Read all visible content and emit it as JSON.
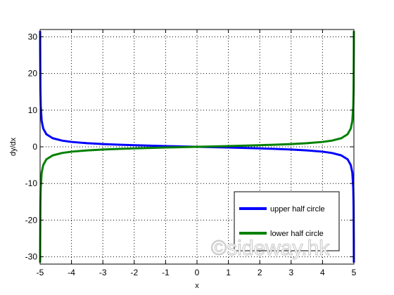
{
  "watermark": "©sideway.hk",
  "chart_data": {
    "type": "line",
    "title": "",
    "xlabel": "x",
    "ylabel": "dy/dx",
    "xlim": [
      -5,
      5
    ],
    "ylim": [
      -32,
      32
    ],
    "xticks": [
      "-5",
      "-4",
      "-3",
      "-2",
      "-1",
      "0",
      "1",
      "2",
      "3",
      "4",
      "5"
    ],
    "yticks": [
      "-30",
      "-20",
      "-10",
      "0",
      "10",
      "20",
      "30"
    ],
    "grid": true,
    "legend_position": "bottom-right",
    "series": [
      {
        "name": "upper half circle",
        "color": "#0000ff",
        "x": [
          -4.999,
          -4.997,
          -4.99,
          -4.98,
          -4.95,
          -4.9,
          -4.8,
          -4.6,
          -4.3,
          -4,
          -3.5,
          -3,
          -2.5,
          -2,
          -1.5,
          -1,
          -0.5,
          0,
          0.5,
          1,
          1.5,
          2,
          2.5,
          3,
          3.5,
          4,
          4.3,
          4.6,
          4.8,
          4.9,
          4.95,
          4.98,
          4.99,
          4.997,
          4.999
        ],
        "y": [
          31.6,
          25.8,
          15.8,
          11.2,
          7.05,
          4.97,
          3.43,
          2.35,
          1.69,
          1.33,
          0.98,
          0.75,
          0.58,
          0.44,
          0.31,
          0.2,
          0.1,
          0,
          -0.1,
          -0.2,
          -0.31,
          -0.44,
          -0.58,
          -0.75,
          -0.98,
          -1.33,
          -1.69,
          -2.35,
          -3.43,
          -4.97,
          -7.05,
          -11.2,
          -15.8,
          -25.8,
          -31.6
        ]
      },
      {
        "name": "lower half circle",
        "color": "#008000",
        "x": [
          -4.999,
          -4.997,
          -4.99,
          -4.98,
          -4.95,
          -4.9,
          -4.8,
          -4.6,
          -4.3,
          -4,
          -3.5,
          -3,
          -2.5,
          -2,
          -1.5,
          -1,
          -0.5,
          0,
          0.5,
          1,
          1.5,
          2,
          2.5,
          3,
          3.5,
          4,
          4.3,
          4.6,
          4.8,
          4.9,
          4.95,
          4.98,
          4.99,
          4.997,
          4.999
        ],
        "y": [
          -31.6,
          -25.8,
          -15.8,
          -11.2,
          -7.05,
          -4.97,
          -3.43,
          -2.35,
          -1.69,
          -1.33,
          -0.98,
          -0.75,
          -0.58,
          -0.44,
          -0.31,
          -0.2,
          -0.1,
          0,
          0.1,
          0.2,
          0.31,
          0.44,
          0.58,
          0.75,
          0.98,
          1.33,
          1.69,
          2.35,
          3.43,
          4.97,
          7.05,
          11.2,
          15.8,
          25.8,
          31.6
        ]
      }
    ]
  }
}
